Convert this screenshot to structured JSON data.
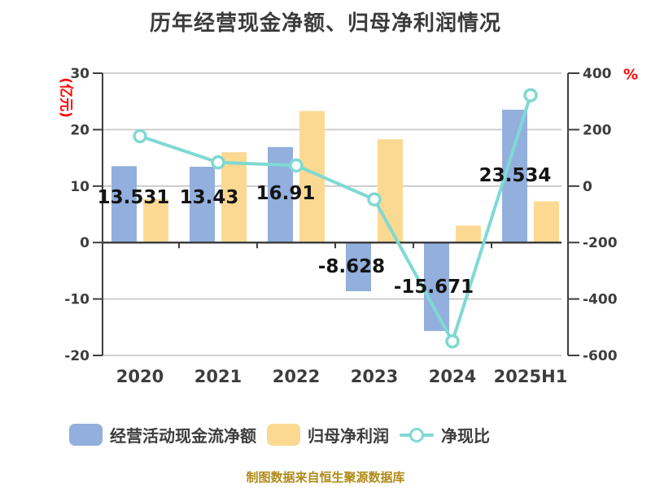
{
  "title": "历年经营现金净额、归母净利润情况",
  "left_axis": {
    "unit_label": "(亿元)",
    "ticks": [
      "30",
      "20",
      "10",
      "0",
      "-10",
      "-20"
    ],
    "color": "#FF0000"
  },
  "right_axis": {
    "unit_label": "%",
    "ticks": [
      "400",
      "200",
      "0",
      "-200",
      "-400",
      "-600"
    ],
    "color": "#FF0000"
  },
  "legend": {
    "items": [
      {
        "label": "经营活动现金流净额",
        "marker": "bar",
        "color": "#92AFDD"
      },
      {
        "label": "归母净利润",
        "marker": "bar",
        "color": "#FCD993"
      },
      {
        "label": "净现比",
        "marker": "line-dot",
        "color": "#7FD9D3"
      }
    ]
  },
  "footer": {
    "source_note": "制图数据来自恒生聚源数据库"
  },
  "colors": {
    "bar_blue": "#92AFDD",
    "bar_yellow": "#FCD993",
    "line_teal": "#7FD9D3",
    "grid": "#C9C9C9",
    "axis": "#3F3F3F",
    "text_dark": "#3D3D3D",
    "data_label": "#141414",
    "accent_red": "#FF0000",
    "footer_gold": "#B08A18"
  },
  "chart_data": {
    "type": "bar",
    "title": "历年经营现金净额、归母净利润情况",
    "categories": [
      "2020",
      "2021",
      "2022",
      "2023",
      "2024",
      "2025H1"
    ],
    "series": [
      {
        "name": "经营活动现金流净额",
        "type": "bar",
        "axis": "left",
        "unit": "亿元",
        "values": [
          13.531,
          13.43,
          16.91,
          -8.628,
          -15.671,
          23.534
        ],
        "data_labels": [
          "13.531",
          "13.43",
          "16.91",
          "-8.628",
          "-15.671",
          "23.534"
        ]
      },
      {
        "name": "归母净利润",
        "type": "bar",
        "axis": "left",
        "unit": "亿元",
        "estimated": true,
        "values": [
          7.7,
          16.0,
          23.3,
          18.3,
          3.0,
          7.3
        ]
      },
      {
        "name": "净现比",
        "type": "line",
        "axis": "right",
        "unit": "%",
        "estimated": true,
        "values": [
          177,
          84,
          73,
          -47,
          -550,
          322
        ]
      }
    ],
    "left_ylim": [
      -20,
      30
    ],
    "right_ylim": [
      -600,
      400
    ],
    "left_ticks": [
      30,
      20,
      10,
      0,
      -10,
      -20
    ],
    "right_ticks": [
      400,
      200,
      0,
      -200,
      -400,
      -600
    ],
    "xlabel": "",
    "ylabel_left": "(亿元)",
    "ylabel_right": "%",
    "grid": true,
    "legend_position": "bottom"
  }
}
